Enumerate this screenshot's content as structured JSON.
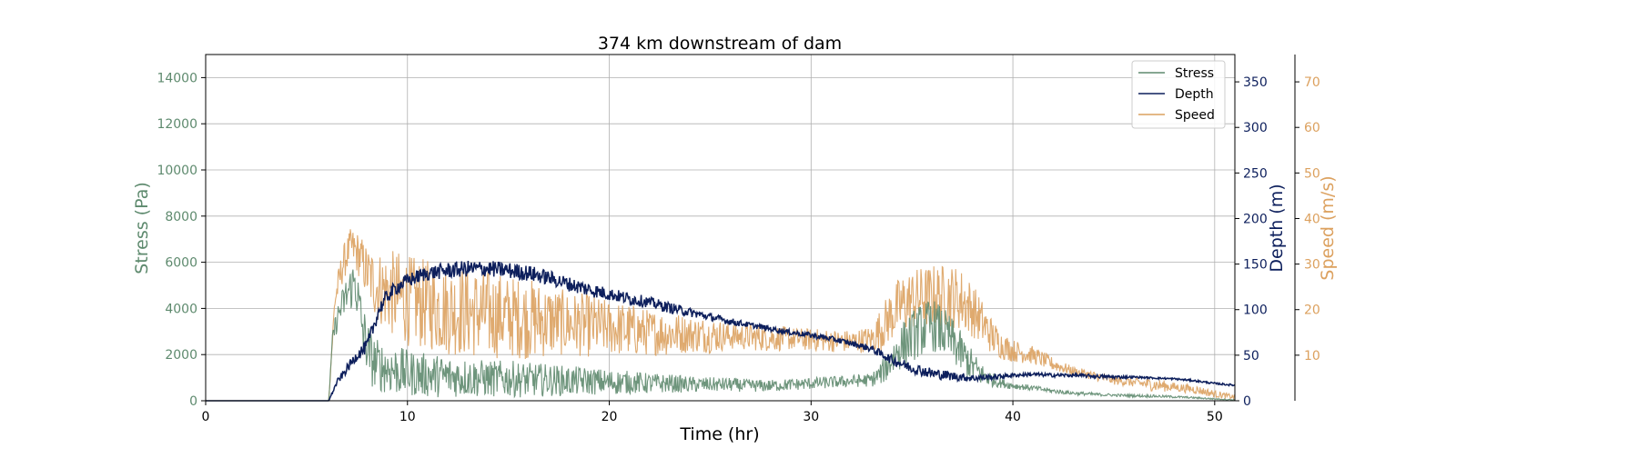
{
  "chart_data": {
    "type": "line",
    "title": "374 km downstream of dam",
    "xlabel": "Time (hr)",
    "xlim": [
      0,
      51
    ],
    "x_ticks": [
      "0",
      "10",
      "20",
      "30",
      "40",
      "50"
    ],
    "grid": true,
    "legend_position": "top-right",
    "axes": {
      "stress": {
        "label": "Stress (Pa)",
        "ylim": [
          0,
          15000
        ],
        "ticks": [
          "0",
          "2000",
          "4000",
          "6000",
          "8000",
          "10000",
          "12000",
          "14000"
        ],
        "color": "#5e8a6e"
      },
      "depth": {
        "label": "Depth (m)",
        "ylim": [
          0,
          380
        ],
        "ticks": [
          "0",
          "50",
          "100",
          "150",
          "200",
          "250",
          "300",
          "350"
        ],
        "color": "#0d1f5c"
      },
      "speed": {
        "label": "Speed (m/s)",
        "ylim": [
          0,
          76
        ],
        "ticks": [
          "10",
          "20",
          "30",
          "40",
          "50",
          "60",
          "70"
        ],
        "color": "#dca15f"
      }
    },
    "series": [
      {
        "name": "Stress",
        "axis": "stress",
        "color": "#5e8a6e",
        "x": [
          0,
          6.1,
          6.3,
          6.6,
          7.0,
          7.4,
          7.8,
          8.2,
          8.6,
          9.0,
          9.5,
          10,
          11,
          12,
          13,
          14,
          15,
          16,
          17,
          18,
          19,
          20,
          21,
          22,
          23,
          24,
          25,
          26,
          27,
          28,
          29,
          30,
          31,
          32,
          33,
          33.5,
          34,
          34.5,
          35,
          35.5,
          36,
          36.5,
          37,
          37.5,
          38,
          38.5,
          39,
          39.5,
          40,
          41,
          42,
          43,
          44,
          45,
          46,
          47,
          48,
          49,
          50,
          51
        ],
        "y": [
          0,
          0,
          2800,
          3800,
          4600,
          5200,
          3000,
          1800,
          1500,
          1400,
          1300,
          1200,
          1100,
          1050,
          1000,
          950,
          950,
          900,
          900,
          850,
          850,
          800,
          800,
          750,
          750,
          700,
          700,
          700,
          650,
          650,
          700,
          750,
          800,
          850,
          900,
          1200,
          1800,
          2400,
          2800,
          3100,
          3300,
          3000,
          2600,
          2000,
          1500,
          1100,
          900,
          750,
          650,
          550,
          420,
          330,
          280,
          240,
          220,
          200,
          170,
          130,
          80,
          40
        ],
        "amp": [
          0,
          0,
          400,
          600,
          900,
          1100,
          1200,
          1200,
          1100,
          1100,
          1100,
          1000,
          950,
          900,
          850,
          800,
          800,
          750,
          700,
          650,
          600,
          550,
          500,
          450,
          400,
          350,
          320,
          300,
          280,
          260,
          260,
          260,
          260,
          260,
          300,
          500,
          800,
          1000,
          1100,
          1150,
          1150,
          1100,
          1000,
          900,
          700,
          500,
          300,
          200,
          150,
          120,
          100,
          80,
          70,
          60,
          60,
          60,
          50,
          40,
          30,
          20
        ]
      },
      {
        "name": "Depth",
        "axis": "depth",
        "color": "#0d1f5c",
        "x": [
          0,
          6.1,
          6.5,
          7.0,
          7.5,
          8.0,
          8.3,
          8.6,
          9.0,
          9.5,
          10,
          11,
          12,
          13,
          14,
          15,
          16,
          17,
          18,
          19,
          20,
          21,
          22,
          23,
          24,
          25,
          26,
          27,
          28,
          29,
          30,
          31,
          32,
          33,
          34,
          35,
          36,
          37,
          38,
          39,
          40,
          41,
          42,
          43,
          44,
          45,
          46,
          47,
          48,
          49,
          50,
          51
        ],
        "y": [
          0,
          0,
          20,
          35,
          50,
          60,
          80,
          100,
          115,
          125,
          132,
          140,
          143,
          145,
          145,
          143,
          140,
          135,
          128,
          122,
          117,
          112,
          108,
          102,
          97,
          92,
          87,
          83,
          79,
          75,
          72,
          68,
          63,
          57,
          45,
          36,
          30,
          27,
          25,
          26,
          28,
          29,
          28,
          28,
          27,
          26,
          26,
          25,
          24,
          22,
          19,
          17
        ],
        "amp": [
          0,
          0,
          3,
          5,
          6,
          8,
          8,
          8,
          8,
          8,
          8,
          8,
          9,
          9,
          9,
          9,
          9,
          8,
          8,
          8,
          7,
          7,
          6,
          6,
          5,
          4,
          4,
          3,
          3,
          3,
          3,
          3,
          3,
          4,
          5,
          6,
          6,
          5,
          4,
          3,
          2,
          2,
          2,
          2,
          2,
          2,
          1,
          1,
          1,
          1,
          1,
          1
        ]
      },
      {
        "name": "Speed",
        "axis": "speed",
        "color": "#dca15f",
        "x": [
          0,
          6.1,
          6.4,
          6.8,
          7.2,
          7.6,
          8.0,
          8.5,
          9.0,
          9.5,
          10,
          11,
          12,
          13,
          14,
          15,
          16,
          17,
          18,
          19,
          20,
          21,
          22,
          23,
          24,
          25,
          26,
          27,
          28,
          29,
          30,
          31,
          32,
          33,
          33.5,
          34,
          34.5,
          35,
          36,
          37,
          37.5,
          38,
          38.5,
          39,
          39.5,
          40,
          41,
          42,
          43,
          44,
          45,
          46,
          47,
          48,
          49,
          50,
          51
        ],
        "y": [
          0,
          0,
          22,
          30,
          34,
          32,
          28,
          25,
          24,
          23,
          22,
          21,
          20,
          19.5,
          19,
          18.5,
          18,
          17.5,
          17,
          16.5,
          16,
          15.5,
          15,
          14.8,
          14.6,
          14.4,
          14.2,
          14,
          13.8,
          13.6,
          13.4,
          13.2,
          13,
          13.5,
          16,
          19,
          21,
          22,
          23,
          23,
          22,
          20,
          17,
          14,
          12,
          11,
          10,
          8,
          6.5,
          5.5,
          4.5,
          4,
          3.5,
          3,
          2.5,
          1.5,
          0.8
        ],
        "amp": [
          0,
          0,
          3,
          4,
          4,
          5,
          6,
          8,
          9,
          10,
          10,
          10,
          10,
          10,
          10,
          9,
          9,
          8,
          7,
          7,
          6,
          6,
          5,
          5,
          4,
          4,
          3,
          3,
          3,
          2.5,
          2.5,
          2.5,
          2.5,
          3,
          5,
          6,
          7,
          7,
          7,
          7,
          7,
          6,
          5,
          4,
          3,
          2.5,
          2,
          1.5,
          1,
          1,
          1,
          1,
          1.5,
          1,
          1,
          0.8,
          0.5
        ]
      }
    ]
  }
}
